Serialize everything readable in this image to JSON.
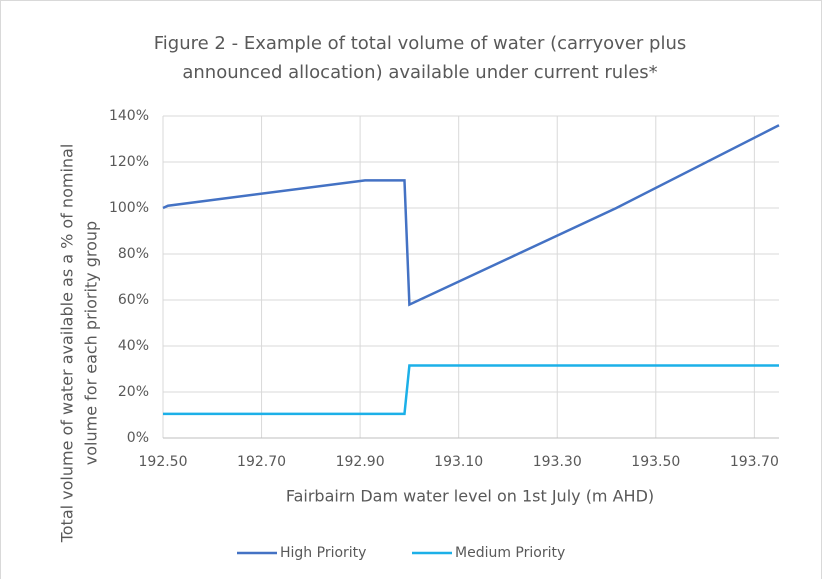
{
  "chart_data": {
    "type": "line",
    "title": [
      "Figure 2 - Example of total volume of water (carryover plus",
      "announced allocation) available under current rules*"
    ],
    "x_label": "Fairbairn Dam water level on 1st July (m AHD)",
    "y_label": [
      "Total volume of water available as a % of nominal",
      "volume for each priority group"
    ],
    "series": [
      {
        "name": "High Priority",
        "color": "#4472c4",
        "x": [
          192.5,
          192.51,
          192.91,
          192.99,
          193.0,
          193.42,
          193.75
        ],
        "values": [
          100,
          101,
          112,
          112,
          58,
          100,
          136
        ]
      },
      {
        "name": "Medium Priority",
        "color": "#1cb0e8",
        "x": [
          192.5,
          192.99,
          193.0,
          193.75
        ],
        "values": [
          10.5,
          10.5,
          31.5,
          31.5
        ]
      }
    ],
    "xlim": [
      192.5,
      193.75
    ],
    "xticks": [
      {
        "value": 192.5,
        "label": "192.50"
      },
      {
        "value": 192.7,
        "label": "192.70"
      },
      {
        "value": 192.9,
        "label": "192.90"
      },
      {
        "value": 193.1,
        "label": "193.10"
      },
      {
        "value": 193.3,
        "label": "193.30"
      },
      {
        "value": 193.5,
        "label": "193.50"
      },
      {
        "value": 193.7,
        "label": "193.70"
      }
    ],
    "ylim": [
      0,
      140
    ],
    "yticks": [
      {
        "value": 0,
        "label": "0%"
      },
      {
        "value": 20,
        "label": "20%"
      },
      {
        "value": 40,
        "label": "40%"
      },
      {
        "value": 60,
        "label": "60%"
      },
      {
        "value": 80,
        "label": "80%"
      },
      {
        "value": 100,
        "label": "100%"
      },
      {
        "value": 120,
        "label": "120%"
      },
      {
        "value": 140,
        "label": "140%"
      }
    ],
    "grid": true,
    "legend": "bottom"
  }
}
